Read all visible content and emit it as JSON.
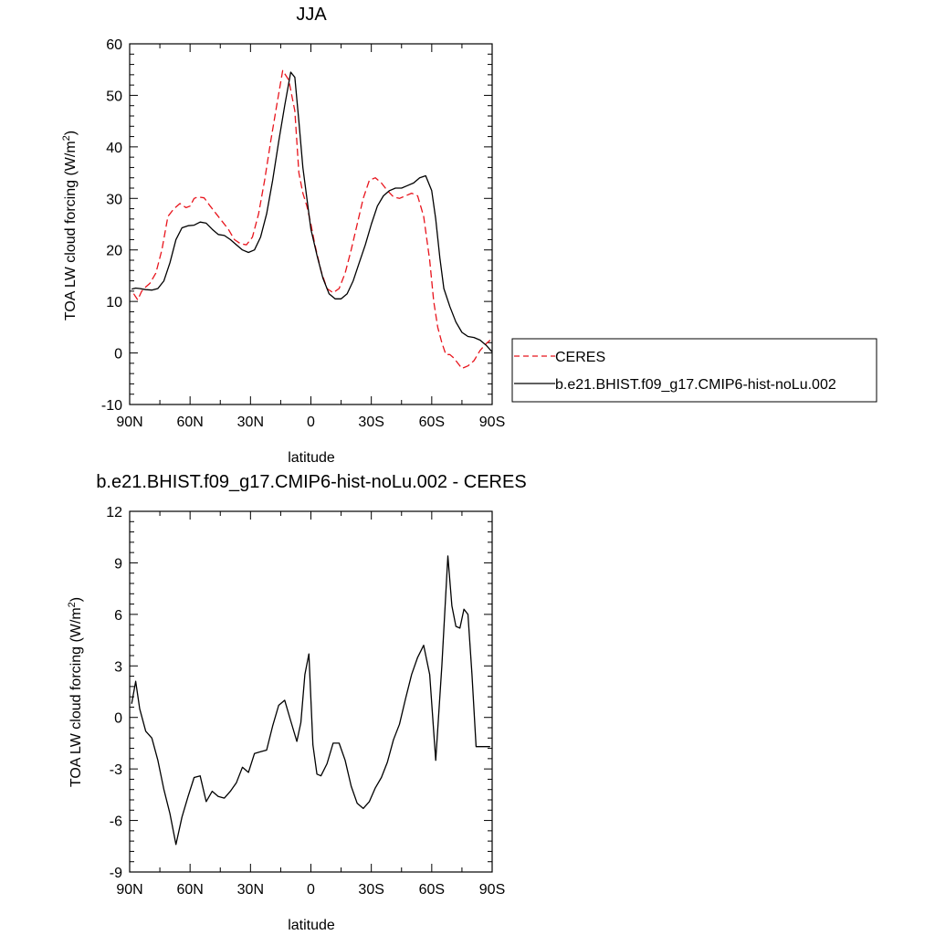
{
  "chart_data": [
    {
      "type": "line",
      "title": "JJA",
      "xlabel": "latitude",
      "ylabel_main": "TOA LW cloud forcing (W/m",
      "ylabel_sup": "2",
      "ylabel_end": ")",
      "xlim": [
        90,
        -90
      ],
      "ylim": [
        -10,
        60
      ],
      "xticks": [
        {
          "value": 90,
          "label": "90N"
        },
        {
          "value": 60,
          "label": "60N"
        },
        {
          "value": 30,
          "label": "30N"
        },
        {
          "value": 0,
          "label": "0"
        },
        {
          "value": -30,
          "label": "30S"
        },
        {
          "value": -60,
          "label": "60S"
        },
        {
          "value": -90,
          "label": "90S"
        }
      ],
      "yticks": [
        {
          "value": 60,
          "label": "60"
        },
        {
          "value": 50,
          "label": "50"
        },
        {
          "value": 40,
          "label": "40"
        },
        {
          "value": 30,
          "label": "30"
        },
        {
          "value": 20,
          "label": "20"
        },
        {
          "value": 10,
          "label": "10"
        },
        {
          "value": 0,
          "label": "0"
        },
        {
          "value": -10,
          "label": "-10"
        }
      ],
      "legend_position": "right",
      "series": [
        {
          "name": "CERES",
          "color": "#e8141c",
          "dash": "dashed",
          "x": [
            88,
            86,
            84,
            82,
            80,
            77,
            74,
            71,
            68,
            65,
            62,
            60,
            58,
            56,
            53,
            50,
            47,
            44,
            41,
            38,
            35,
            32,
            29,
            26,
            23,
            20,
            17,
            14,
            11,
            8,
            6,
            4,
            2,
            0,
            -2,
            -5,
            -8,
            -11,
            -14,
            -17,
            -20,
            -23,
            -26,
            -29,
            -32,
            -35,
            -38,
            -41,
            -44,
            -47,
            -50,
            -53,
            -56,
            -59,
            -61,
            -63,
            -65,
            -67,
            -69,
            -71,
            -73,
            -75,
            -78,
            -81,
            -84,
            -87,
            -89
          ],
          "y": [
            11.5,
            10.3,
            12.0,
            12.8,
            13.5,
            15.5,
            20.0,
            26.5,
            28.0,
            29.0,
            28.2,
            28.5,
            30.0,
            30.3,
            30.1,
            28.5,
            27.0,
            25.5,
            24.0,
            22.0,
            21.2,
            21.0,
            22.5,
            27.0,
            33.5,
            41.0,
            48.0,
            54.8,
            53.0,
            47.0,
            35.0,
            31.0,
            28.5,
            25.0,
            21.0,
            16.0,
            12.5,
            11.7,
            12.5,
            15.5,
            20.0,
            25.0,
            30.0,
            33.5,
            34.0,
            33.0,
            31.5,
            30.3,
            30.0,
            30.5,
            31.0,
            30.5,
            26.5,
            18.0,
            10.0,
            5.0,
            2.0,
            -0.3,
            -0.3,
            -1.0,
            -2.0,
            -3.0,
            -2.5,
            -1.5,
            0.5,
            1.8,
            2.5
          ]
        },
        {
          "name": "b.e21.BHIST.f09_g17.CMIP6-hist-noLu.002",
          "color": "#000000",
          "dash": "solid",
          "x": [
            89,
            87,
            85,
            82,
            79,
            76,
            73,
            70,
            67,
            64,
            61,
            58,
            55,
            52,
            49,
            46,
            43,
            40,
            37,
            34,
            31,
            28,
            25,
            22,
            19,
            16,
            13,
            10,
            8,
            6,
            4,
            2,
            0,
            -3,
            -6,
            -9,
            -12,
            -15,
            -18,
            -21,
            -24,
            -27,
            -30,
            -33,
            -36,
            -39,
            -42,
            -45,
            -48,
            -51,
            -54,
            -57,
            -60,
            -62,
            -64,
            -66,
            -69,
            -72,
            -75,
            -78,
            -81,
            -84,
            -87,
            -90
          ],
          "y": [
            12.4,
            12.6,
            12.5,
            12.3,
            12.2,
            12.5,
            14.0,
            17.5,
            22.0,
            24.3,
            24.7,
            24.8,
            25.4,
            25.2,
            24.0,
            23.0,
            22.8,
            22.0,
            21.0,
            20.0,
            19.5,
            20.0,
            22.5,
            27.0,
            33.5,
            41.0,
            48.0,
            54.5,
            53.5,
            45.0,
            36.0,
            30.0,
            24.0,
            19.0,
            14.5,
            11.5,
            10.5,
            10.5,
            11.5,
            14.0,
            17.5,
            21.0,
            25.0,
            28.5,
            30.5,
            31.5,
            32.0,
            32.0,
            32.5,
            33.0,
            34.0,
            34.4,
            31.5,
            26.0,
            18.5,
            12.5,
            9.0,
            6.0,
            4.0,
            3.2,
            3.0,
            2.5,
            1.5,
            0.2
          ]
        }
      ]
    },
    {
      "type": "line",
      "title": "b.e21.BHIST.f09_g17.CMIP6-hist-noLu.002 - CERES",
      "xlabel": "latitude",
      "ylabel_main": "TOA LW cloud forcing (W/m",
      "ylabel_sup": "2",
      "ylabel_end": ")",
      "xlim": [
        90,
        -90
      ],
      "ylim": [
        -9,
        12
      ],
      "xticks": [
        {
          "value": 90,
          "label": "90N"
        },
        {
          "value": 60,
          "label": "60N"
        },
        {
          "value": 30,
          "label": "30N"
        },
        {
          "value": 0,
          "label": "0"
        },
        {
          "value": -30,
          "label": "30S"
        },
        {
          "value": -60,
          "label": "60S"
        },
        {
          "value": -90,
          "label": "90S"
        }
      ],
      "yticks": [
        {
          "value": 12,
          "label": "12"
        },
        {
          "value": 9,
          "label": "9"
        },
        {
          "value": 6,
          "label": "6"
        },
        {
          "value": 3,
          "label": "3"
        },
        {
          "value": 0,
          "label": "0"
        },
        {
          "value": -3,
          "label": "-3"
        },
        {
          "value": -6,
          "label": "-6"
        },
        {
          "value": -9,
          "label": "-9"
        }
      ],
      "series": [
        {
          "color": "#000000",
          "dash": "solid",
          "x": [
            89,
            87,
            85,
            82,
            79,
            76,
            73,
            70,
            67,
            64,
            61,
            58,
            55,
            52,
            49,
            46,
            43,
            40,
            37,
            34,
            31,
            28,
            25,
            22,
            19,
            16,
            13,
            10,
            7,
            5,
            3,
            1,
            -1,
            -3,
            -5,
            -8,
            -11,
            -14,
            -17,
            -20,
            -23,
            -26,
            -29,
            -32,
            -35,
            -38,
            -41,
            -44,
            -47,
            -50,
            -53,
            -56,
            -59,
            -62,
            -65,
            -68,
            -70,
            -72,
            -74,
            -76,
            -78,
            -80,
            -82,
            -84,
            -86,
            -88,
            -89
          ],
          "y": [
            0.8,
            2.1,
            0.5,
            -0.8,
            -1.2,
            -2.5,
            -4.2,
            -5.6,
            -7.4,
            -5.8,
            -4.6,
            -3.5,
            -3.4,
            -4.9,
            -4.3,
            -4.6,
            -4.7,
            -4.3,
            -3.8,
            -2.9,
            -3.2,
            -2.1,
            -2.0,
            -1.9,
            -0.5,
            0.7,
            1.0,
            -0.2,
            -1.4,
            -0.3,
            2.5,
            3.7,
            -1.6,
            -3.3,
            -3.4,
            -2.7,
            -1.5,
            -1.5,
            -2.5,
            -4.0,
            -5.0,
            -5.3,
            -4.9,
            -4.1,
            -3.5,
            -2.6,
            -1.3,
            -0.4,
            1.1,
            2.5,
            3.5,
            4.2,
            2.5,
            -2.5,
            3.0,
            9.4,
            6.5,
            5.3,
            5.2,
            6.3,
            6.0,
            2.5,
            -1.7,
            -1.7,
            -1.7,
            -1.7,
            -1.7
          ]
        }
      ]
    }
  ]
}
